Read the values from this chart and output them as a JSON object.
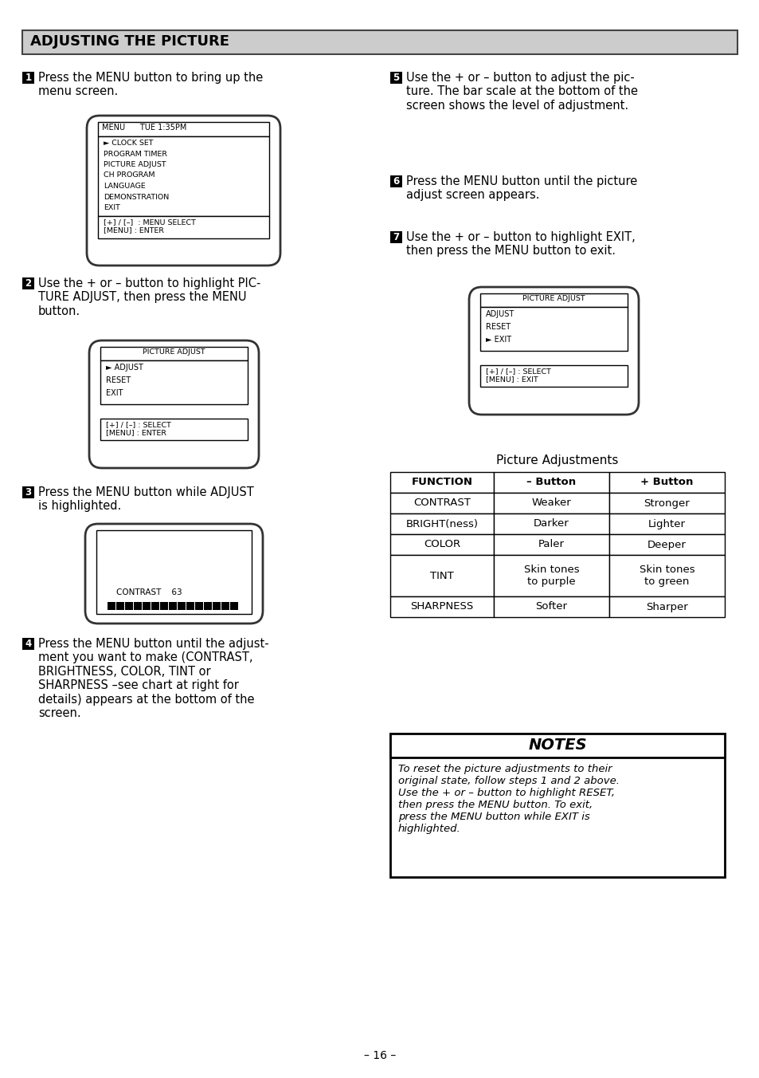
{
  "title": "ADJUSTING THE PICTURE",
  "page_number": "– 16 –",
  "background_color": "#ffffff",
  "header_bg": "#cccccc",
  "step1_text": "Press the MENU button to bring up the\nmenu screen.",
  "step2_text": "Use the + or – button to highlight PIC-\nTURE ADJUST, then press the MENU\nbutton.",
  "step3_text": "Press the MENU button while ADJUST\nis highlighted.",
  "step4_text": "Press the MENU button until the adjust-\nment you want to make (CONTRAST,\nBRIGHTNESS, COLOR, TINT or\nSHARPNESS –see chart at right for\ndetails) appears at the bottom of the\nscreen.",
  "step5_text": "Use the + or – button to adjust the pic-\nture. The bar scale at the bottom of the\nscreen shows the level of adjustment.",
  "step6_text": "Press the MENU button until the picture\nadjust screen appears.",
  "step7_text": "Use the + or – button to highlight EXIT,\nthen press the MENU button to exit.",
  "menu1_title": "MENU      TUE 1:35PM",
  "menu1_items": [
    "► CLOCK SET",
    "PROGRAM TIMER",
    "PICTURE ADJUST",
    "CH PROGRAM",
    "LANGUAGE",
    "DEMONSTRATION",
    "EXIT"
  ],
  "menu1_footer": "[+] / [–]  : MENU SELECT\n[MENU] : ENTER",
  "menu2_title": "PICTURE ADJUST",
  "menu2_items": [
    "► ADJUST",
    "RESET",
    "EXIT"
  ],
  "menu2_footer": "[+] / [–] : SELECT\n[MENU] : ENTER",
  "menu3_content": "CONTRAST    63",
  "menu4_title": "PICTURE ADJUST",
  "menu4_items": [
    "ADJUST",
    "RESET",
    "► EXIT"
  ],
  "menu4_footer": "[+] / [–] : SELECT\n[MENU] : EXIT",
  "table_title": "Picture Adjustments",
  "table_headers": [
    "FUNCTION",
    "– Button",
    "+ Button"
  ],
  "table_rows": [
    [
      "CONTRAST",
      "Weaker",
      "Stronger"
    ],
    [
      "BRIGHT(ness)",
      "Darker",
      "Lighter"
    ],
    [
      "COLOR",
      "Paler",
      "Deeper"
    ],
    [
      "TINT",
      "Skin tones\nto purple",
      "Skin tones\nto green"
    ],
    [
      "SHARPNESS",
      "Softer",
      "Sharper"
    ]
  ],
  "notes_title": "NOTES",
  "notes_text": "To reset the picture adjustments to their\noriginal state, follow steps 1 and 2 above.\nUse the + or – button to highlight RESET,\nthen press the MENU button. To exit,\npress the MENU button while EXIT is\nhighlighted."
}
